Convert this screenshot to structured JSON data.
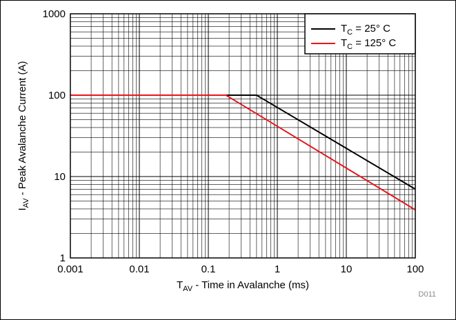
{
  "chart_data": {
    "type": "line",
    "title": "",
    "x_scale": "log",
    "y_scale": "log",
    "xlim": [
      0.001,
      100
    ],
    "ylim": [
      1,
      1000
    ],
    "grid": true,
    "legend_position": "top-right",
    "xlabel": {
      "main": "T",
      "sub": "AV",
      "rest": " - Time in Avalanche (ms)"
    },
    "ylabel": {
      "main": "I",
      "sub": "AV",
      "rest": " - Peak Avalanche Current (A)"
    },
    "x_ticks": [
      {
        "value": 0.001,
        "label": "0.001"
      },
      {
        "value": 0.01,
        "label": "0.01"
      },
      {
        "value": 0.1,
        "label": "0.1"
      },
      {
        "value": 1,
        "label": "1"
      },
      {
        "value": 10,
        "label": "10"
      },
      {
        "value": 100,
        "label": "100"
      }
    ],
    "y_ticks": [
      {
        "value": 1,
        "label": "1"
      },
      {
        "value": 10,
        "label": "10"
      },
      {
        "value": 100,
        "label": "100"
      },
      {
        "value": 1000,
        "label": "1000"
      }
    ],
    "series": [
      {
        "name": {
          "main": "T",
          "sub": "C",
          "rest": " = 25° C"
        },
        "color": "#000000",
        "points": [
          [
            0.001,
            100
          ],
          [
            0.5,
            100
          ],
          [
            100,
            7
          ]
        ]
      },
      {
        "name": {
          "main": "T",
          "sub": "C",
          "rest": " = 125° C"
        },
        "color": "#e8141c",
        "points": [
          [
            0.001,
            100
          ],
          [
            0.18,
            100
          ],
          [
            100,
            3.9
          ]
        ]
      }
    ],
    "annotations": [
      {
        "text": "D011"
      }
    ]
  }
}
